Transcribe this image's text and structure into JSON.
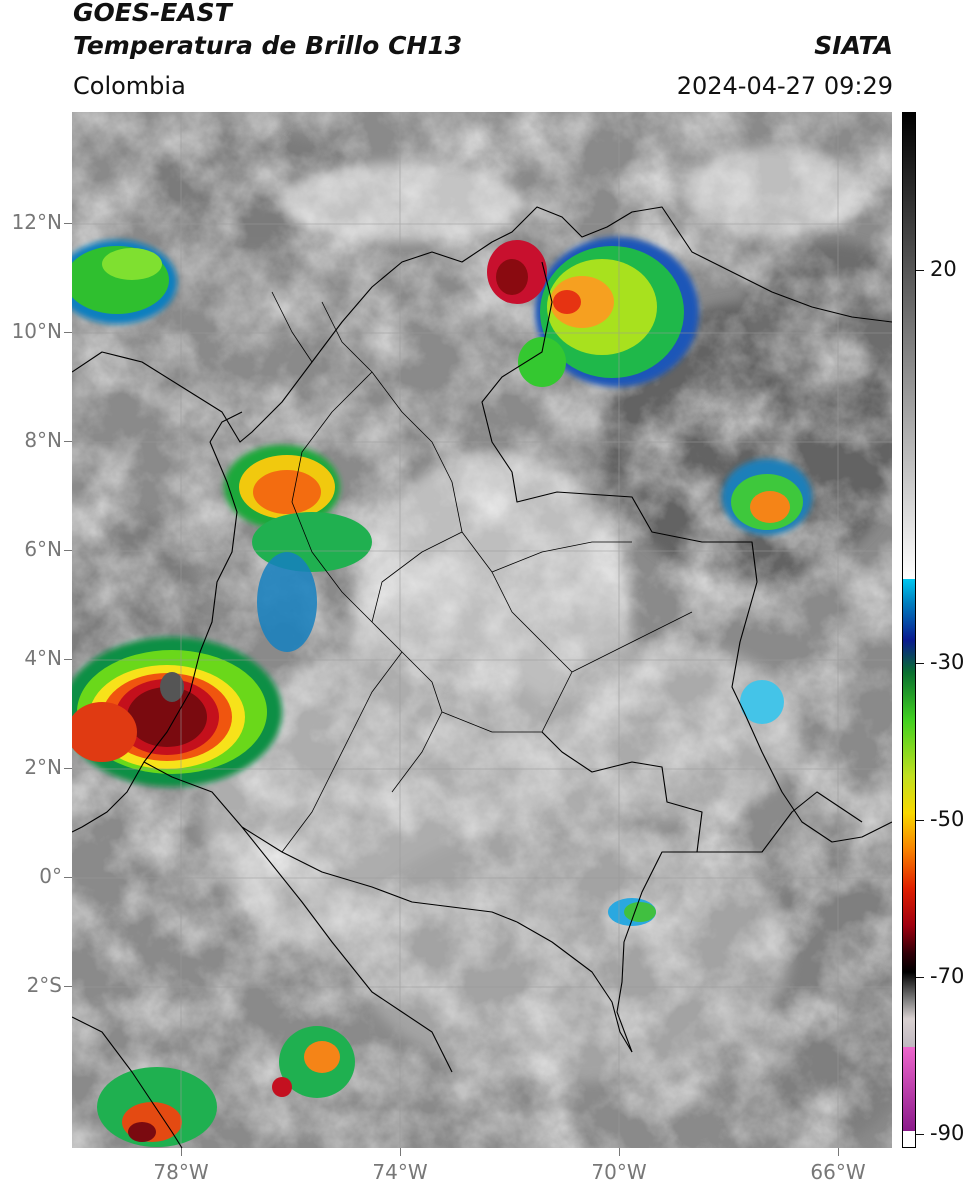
{
  "header": {
    "satellite": "GOES-EAST",
    "product": "Temperatura de Brillo CH13",
    "organization": "SIATA",
    "region": "Colombia",
    "datetime": "2024-04-27 09:29"
  },
  "map": {
    "lat_range": [
      -4.8,
      14.2
    ],
    "lon_range": [
      -80,
      -65
    ],
    "lat_labels": [
      "12°N",
      "10°N",
      "8°N",
      "6°N",
      "4°N",
      "2°N",
      "0°",
      "2°S"
    ],
    "lon_labels": [
      "78°W",
      "74°W",
      "70°W",
      "66°W"
    ]
  },
  "colorbar": {
    "range": [
      -92,
      32
    ],
    "labels": [
      "20",
      "-30",
      "-50",
      "-70",
      "-90"
    ]
  }
}
